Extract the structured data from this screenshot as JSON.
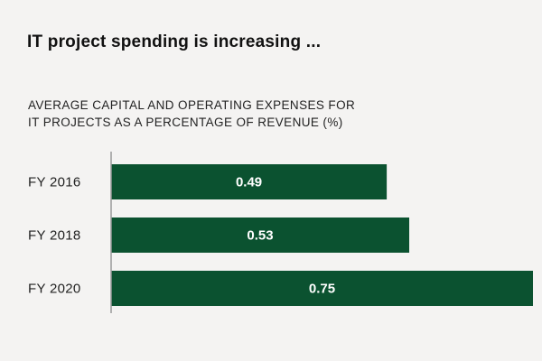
{
  "chart_data": {
    "type": "bar",
    "orientation": "horizontal",
    "title": "IT project spending is increasing ...",
    "subtitle_lines": [
      "AVERAGE CAPITAL AND OPERATING EXPENSES FOR",
      "IT PROJECTS AS A PERCENTAGE OF REVENUE (%)"
    ],
    "categories": [
      "FY 2016",
      "FY 2018",
      "FY 2020"
    ],
    "values": [
      0.49,
      0.53,
      0.75
    ],
    "xlim": [
      0,
      0.75
    ],
    "grid": false,
    "legend": "none",
    "bar_color": "#0b5230",
    "axis_color": "#9a9a9a"
  }
}
